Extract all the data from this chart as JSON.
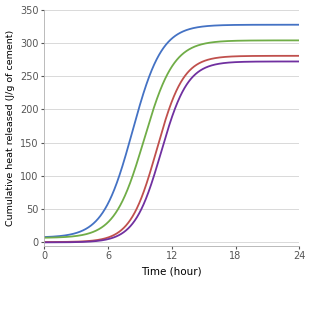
{
  "title": "",
  "xlabel": "Time (hour)",
  "ylabel": "Cumulative heat released (J/g of cement)",
  "xlim": [
    0,
    24
  ],
  "ylim": [
    -5,
    350
  ],
  "xticks": [
    0,
    6,
    12,
    18,
    24
  ],
  "yticks": [
    0,
    50,
    100,
    150,
    200,
    250,
    300,
    350
  ],
  "curves": {
    "OPC": {
      "color": "#4472C4",
      "L": 320,
      "k": 0.72,
      "x0": 8.3,
      "start": 8.0
    },
    "OPC1": {
      "color": "#70AD47",
      "L": 297,
      "k": 0.72,
      "x0": 9.4,
      "start": 7.0
    },
    "OPC2": {
      "color": "#C0504D",
      "L": 280,
      "k": 0.8,
      "x0": 10.6,
      "start": 0.5
    },
    "OPC3": {
      "color": "#7030A0",
      "L": 272,
      "k": 0.8,
      "x0": 11.0,
      "start": 0.0
    }
  },
  "legend_ncol": 4,
  "background_color": "#ffffff",
  "grid_color": "#d3d3d3",
  "figsize": [
    3.11,
    3.15
  ],
  "dpi": 100
}
